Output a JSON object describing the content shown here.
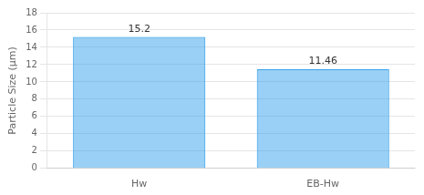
{
  "chart_data": {
    "type": "bar",
    "categories": [
      "Hw",
      "EB-Hw"
    ],
    "values": [
      15.2,
      11.46
    ],
    "ylabel": "Particle Size (μm)",
    "ylim": [
      0,
      18
    ],
    "yticks": [
      0,
      2,
      4,
      6,
      8,
      10,
      12,
      14,
      16,
      18
    ],
    "grid": true,
    "data_labels": true
  }
}
